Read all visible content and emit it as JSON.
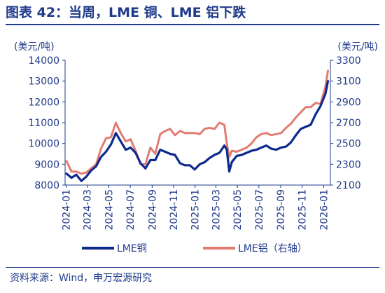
{
  "header": {
    "title": "图表 42：当周，LME 铜、LME 铝下跌"
  },
  "footer": {
    "source": "资料来源：Wind，申万宏源研究"
  },
  "colors": {
    "title": "#1f3a8a",
    "copper": "#0d2a8c",
    "aluminum": "#e27c73",
    "axis": "#1f3a8a"
  },
  "chart_data": {
    "type": "line",
    "left_axis": {
      "unit": "(美元/吨)",
      "ylim": [
        8000,
        14000
      ],
      "ticks": [
        "8000",
        "9000",
        "10000",
        "11000",
        "12000",
        "13000",
        "14000"
      ]
    },
    "right_axis": {
      "unit": "(美元/吨)",
      "ylim": [
        2100,
        3300
      ],
      "ticks": [
        "2100",
        "2300",
        "2500",
        "2700",
        "2900",
        "3100",
        "3300"
      ]
    },
    "x_ticks": [
      "2024-01",
      "2024-03",
      "2024-05",
      "2024-07",
      "2024-09",
      "2024-11",
      "2025-01",
      "2025-03",
      "2025-05",
      "2025-07",
      "2025-09",
      "2025-11",
      "2026-01"
    ],
    "grid": false,
    "legend_placement": "bottom",
    "series": [
      {
        "name": "LME铜",
        "axis": "left",
        "color": "#0d2a8c",
        "dates": [
          "2024-01-02",
          "2024-01-16",
          "2024-01-30",
          "2024-02-13",
          "2024-02-27",
          "2024-03-12",
          "2024-03-26",
          "2024-04-09",
          "2024-04-23",
          "2024-05-07",
          "2024-05-21",
          "2024-06-04",
          "2024-06-18",
          "2024-07-02",
          "2024-07-16",
          "2024-07-30",
          "2024-08-13",
          "2024-08-27",
          "2024-09-10",
          "2024-09-24",
          "2024-10-08",
          "2024-10-22",
          "2024-11-05",
          "2024-11-19",
          "2024-12-03",
          "2024-12-17",
          "2024-12-31",
          "2025-01-14",
          "2025-01-28",
          "2025-02-11",
          "2025-02-25",
          "2025-03-11",
          "2025-03-25",
          "2025-04-01",
          "2025-04-08",
          "2025-04-15",
          "2025-04-29",
          "2025-05-13",
          "2025-05-27",
          "2025-06-10",
          "2025-06-24",
          "2025-07-08",
          "2025-07-22",
          "2025-08-05",
          "2025-08-19",
          "2025-09-02",
          "2025-09-16",
          "2025-09-30",
          "2025-10-14",
          "2025-10-28",
          "2025-11-11",
          "2025-11-25",
          "2025-12-09",
          "2025-12-23",
          "2026-01-06",
          "2026-01-13"
        ],
        "values": [
          8550,
          8350,
          8500,
          8200,
          8400,
          8700,
          8900,
          9350,
          9600,
          9950,
          10500,
          10100,
          9700,
          9800,
          9550,
          9050,
          8800,
          9200,
          9200,
          9700,
          9600,
          9500,
          9450,
          9050,
          8950,
          8950,
          8750,
          9000,
          9100,
          9300,
          9450,
          9550,
          9900,
          9700,
          8650,
          9100,
          9400,
          9450,
          9550,
          9650,
          9700,
          9800,
          9900,
          9750,
          9700,
          9800,
          9850,
          10050,
          10400,
          10700,
          10800,
          10900,
          11400,
          11800,
          12400,
          13000
        ]
      },
      {
        "name": "LME铝（右轴）",
        "axis": "right",
        "color": "#e27c73",
        "dates": [
          "2024-01-02",
          "2024-01-16",
          "2024-01-30",
          "2024-02-13",
          "2024-02-27",
          "2024-03-12",
          "2024-03-26",
          "2024-04-09",
          "2024-04-23",
          "2024-05-07",
          "2024-05-21",
          "2024-06-04",
          "2024-06-18",
          "2024-07-02",
          "2024-07-16",
          "2024-07-30",
          "2024-08-13",
          "2024-08-27",
          "2024-09-10",
          "2024-09-24",
          "2024-10-08",
          "2024-10-22",
          "2024-11-05",
          "2024-11-19",
          "2024-12-03",
          "2024-12-17",
          "2024-12-31",
          "2025-01-14",
          "2025-01-28",
          "2025-02-11",
          "2025-02-25",
          "2025-03-11",
          "2025-03-25",
          "2025-04-01",
          "2025-04-08",
          "2025-04-15",
          "2025-04-29",
          "2025-05-13",
          "2025-05-27",
          "2025-06-10",
          "2025-06-24",
          "2025-07-08",
          "2025-07-22",
          "2025-08-05",
          "2025-08-19",
          "2025-09-02",
          "2025-09-16",
          "2025-09-30",
          "2025-10-14",
          "2025-10-28",
          "2025-11-11",
          "2025-11-25",
          "2025-12-09",
          "2025-12-23",
          "2026-01-06",
          "2026-01-13"
        ],
        "values": [
          2330,
          2230,
          2230,
          2210,
          2220,
          2260,
          2300,
          2450,
          2550,
          2560,
          2700,
          2600,
          2520,
          2540,
          2430,
          2300,
          2300,
          2460,
          2400,
          2590,
          2620,
          2640,
          2580,
          2620,
          2600,
          2600,
          2600,
          2590,
          2640,
          2650,
          2640,
          2700,
          2680,
          2500,
          2370,
          2430,
          2420,
          2440,
          2460,
          2500,
          2560,
          2590,
          2600,
          2580,
          2590,
          2600,
          2650,
          2690,
          2750,
          2800,
          2850,
          2850,
          2890,
          2880,
          3050,
          3200
        ]
      }
    ]
  }
}
